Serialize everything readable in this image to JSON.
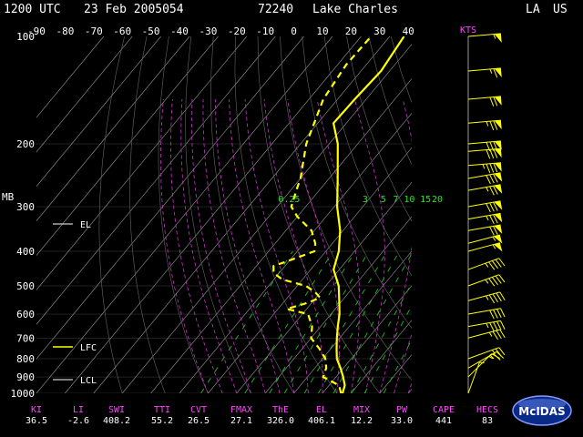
{
  "header": {
    "time": "1200 UTC",
    "date": "23 Feb 2005054",
    "station_id": "72240",
    "station_name": "Lake Charles",
    "state": "LA",
    "country": "US"
  },
  "wind_units": "KTS",
  "pressure_axis_label": "MB",
  "levels": {
    "el": "EL",
    "lfc": "LFC",
    "lcl": "LCL"
  },
  "mixing_ratio_labels": [
    "0.25",
    "3",
    "5",
    "7",
    "10",
    "15",
    "20"
  ],
  "indices": {
    "labels": [
      "KI",
      "LI",
      "SWI",
      "TTI",
      "CVT",
      "FMAX",
      "ThE",
      "EL",
      "MIX",
      "PW",
      "CAPE",
      "HECS"
    ],
    "values": [
      "36.5",
      "-2.6",
      "408.2",
      "55.2",
      "26.5",
      "27.1",
      "326.0",
      "406.1",
      "12.2",
      "33.0",
      "441",
      "83"
    ]
  },
  "logo_text": "McIDAS",
  "colors": {
    "background": "#000000",
    "temperature": "#ffff00",
    "dry_adiabat": "#888888",
    "moist_adiabat": "#cc33cc",
    "mixing_ratio": "#22bb22",
    "wind": "#ffff00",
    "labels": "#ff44ff"
  },
  "chart_data": {
    "type": "line",
    "title": "",
    "xlabel": "",
    "ylabel": "MB",
    "x_ticks": [
      -90,
      -80,
      -70,
      -60,
      -50,
      -40,
      -30,
      -20,
      -10,
      0,
      10,
      20,
      30,
      40
    ],
    "y_ticks": [
      100,
      200,
      300,
      400,
      500,
      600,
      700,
      800,
      900,
      1000
    ],
    "xlim": [
      -90,
      40
    ],
    "ylim": [
      1000,
      100
    ],
    "series": [
      {
        "points": [
          [
            1000,
            17.0
          ],
          [
            950,
            15.5
          ],
          [
            925,
            14.0
          ],
          [
            900,
            12.5
          ],
          [
            850,
            9.0
          ],
          [
            800,
            5.0
          ],
          [
            750,
            2.0
          ],
          [
            700,
            -1.0
          ],
          [
            650,
            -4.0
          ],
          [
            600,
            -7.0
          ],
          [
            550,
            -11.0
          ],
          [
            500,
            -15.5
          ],
          [
            450,
            -22.0
          ],
          [
            400,
            -25.5
          ],
          [
            350,
            -31.0
          ],
          [
            300,
            -39.0
          ],
          [
            250,
            -47.0
          ],
          [
            200,
            -57.0
          ],
          [
            175,
            -64.5
          ],
          [
            150,
            -64.0
          ],
          [
            125,
            -63.0
          ],
          [
            100,
            -65.0
          ]
        ]
      },
      {
        "points": [
          [
            1000,
            16.5
          ],
          [
            950,
            13.5
          ],
          [
            900,
            5.5
          ],
          [
            850,
            4.0
          ],
          [
            800,
            1.0
          ],
          [
            750,
            -4.0
          ],
          [
            700,
            -10.0
          ],
          [
            650,
            -13.0
          ],
          [
            600,
            -18.0
          ],
          [
            580,
            -27.0
          ],
          [
            560,
            -22.0
          ],
          [
            540,
            -18.5
          ],
          [
            520,
            -22.0
          ],
          [
            500,
            -27.0
          ],
          [
            480,
            -37.0
          ],
          [
            460,
            -42.0
          ],
          [
            440,
            -44.0
          ],
          [
            420,
            -39.0
          ],
          [
            400,
            -34.0
          ],
          [
            380,
            -36.0
          ],
          [
            350,
            -41.0
          ],
          [
            320,
            -50.0
          ],
          [
            300,
            -55.0
          ],
          [
            270,
            -58.0
          ],
          [
            250,
            -60.0
          ],
          [
            230,
            -63.0
          ],
          [
            200,
            -68.0
          ],
          [
            150,
            -75.0
          ],
          [
            120,
            -77.0
          ],
          [
            100,
            -76.5
          ]
        ]
      }
    ],
    "wind_barbs": [
      {
        "p": 1000,
        "dir": 200,
        "spd": 5
      },
      {
        "p": 900,
        "dir": 225,
        "spd": 15
      },
      {
        "p": 850,
        "dir": 240,
        "spd": 25
      },
      {
        "p": 800,
        "dir": 250,
        "spd": 25
      },
      {
        "p": 700,
        "dir": 255,
        "spd": 35
      },
      {
        "p": 650,
        "dir": 260,
        "spd": 45
      },
      {
        "p": 600,
        "dir": 260,
        "spd": 40
      },
      {
        "p": 550,
        "dir": 255,
        "spd": 45
      },
      {
        "p": 500,
        "dir": 250,
        "spd": 45
      },
      {
        "p": 450,
        "dir": 250,
        "spd": 45
      },
      {
        "p": 400,
        "dir": 255,
        "spd": 55
      },
      {
        "p": 380,
        "dir": 255,
        "spd": 55
      },
      {
        "p": 350,
        "dir": 260,
        "spd": 70
      },
      {
        "p": 325,
        "dir": 260,
        "spd": 75
      },
      {
        "p": 300,
        "dir": 260,
        "spd": 80
      },
      {
        "p": 270,
        "dir": 260,
        "spd": 75
      },
      {
        "p": 250,
        "dir": 260,
        "spd": 80
      },
      {
        "p": 230,
        "dir": 265,
        "spd": 85
      },
      {
        "p": 210,
        "dir": 265,
        "spd": 80
      },
      {
        "p": 200,
        "dir": 265,
        "spd": 80
      },
      {
        "p": 175,
        "dir": 265,
        "spd": 75
      },
      {
        "p": 150,
        "dir": 265,
        "spd": 70
      },
      {
        "p": 125,
        "dir": 265,
        "spd": 65
      },
      {
        "p": 100,
        "dir": 265,
        "spd": 55
      }
    ]
  }
}
